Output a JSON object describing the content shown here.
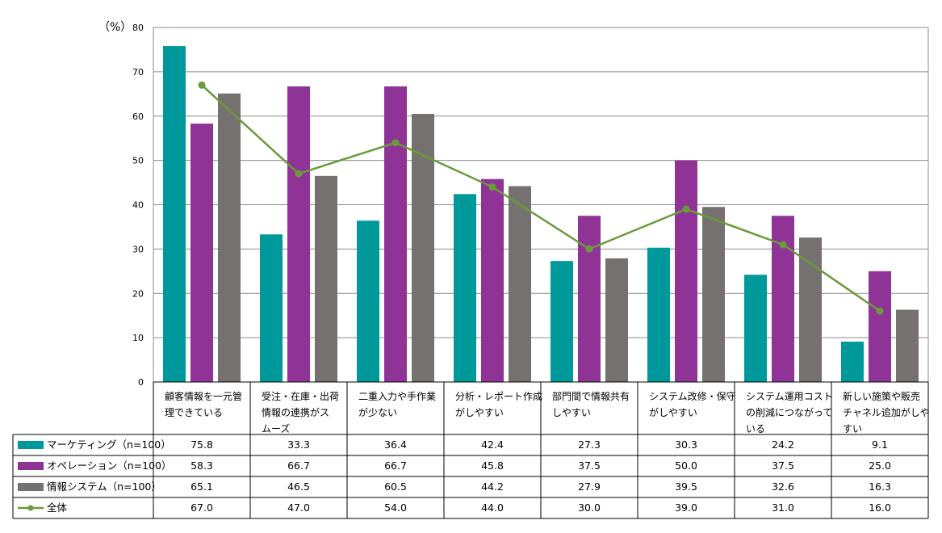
{
  "chart_data": {
    "type": "bar",
    "unit_label": "（%）",
    "ylim": [
      0,
      80
    ],
    "yticks": [
      "0",
      "10",
      "20",
      "30",
      "40",
      "50",
      "60",
      "70",
      "80"
    ],
    "grid": true,
    "categories": [
      [
        "顧客情報を一元管",
        "理できている"
      ],
      [
        "受注・在庫・出荷",
        "情報の連携がス",
        "ムーズ"
      ],
      [
        "二重入力や手作業",
        "が少ない"
      ],
      [
        "分析・レポート作成",
        "がしやすい"
      ],
      [
        "部門間で情報共有",
        "しやすい"
      ],
      [
        "システム改修・保守",
        "がしやすい"
      ],
      [
        "システム運用コスト",
        "の削減につながって",
        "いる"
      ],
      [
        "新しい施策や販売",
        "チャネル追加がしや",
        "すい"
      ]
    ],
    "series": [
      {
        "name": "マーケティング（n=100）",
        "kind": "bar",
        "color": "#00999b",
        "values": [
          75.8,
          33.3,
          36.4,
          42.4,
          27.3,
          30.3,
          24.2,
          9.1
        ],
        "labels": [
          "75.8",
          "33.3",
          "36.4",
          "42.4",
          "27.3",
          "30.3",
          "24.2",
          "9.1"
        ]
      },
      {
        "name": "オペレーション（n=100）",
        "kind": "bar",
        "color": "#8f3496",
        "values": [
          58.3,
          66.7,
          66.7,
          45.8,
          37.5,
          50.0,
          37.5,
          25.0
        ],
        "labels": [
          "58.3",
          "66.7",
          "66.7",
          "45.8",
          "37.5",
          "50.0",
          "37.5",
          "25.0"
        ]
      },
      {
        "name": "情報システム（n=100）",
        "kind": "bar",
        "color": "#767171",
        "values": [
          65.1,
          46.5,
          60.5,
          44.2,
          27.9,
          39.5,
          32.6,
          16.3
        ],
        "labels": [
          "65.1",
          "46.5",
          "60.5",
          "44.2",
          "27.9",
          "39.5",
          "32.6",
          "16.3"
        ]
      },
      {
        "name": "全体",
        "kind": "line",
        "color": "#6a9a3a",
        "values": [
          67.0,
          47.0,
          54.0,
          44.0,
          30.0,
          39.0,
          31.0,
          16.0
        ],
        "labels": [
          "67.0",
          "47.0",
          "54.0",
          "44.0",
          "30.0",
          "39.0",
          "31.0",
          "16.0"
        ]
      }
    ]
  }
}
